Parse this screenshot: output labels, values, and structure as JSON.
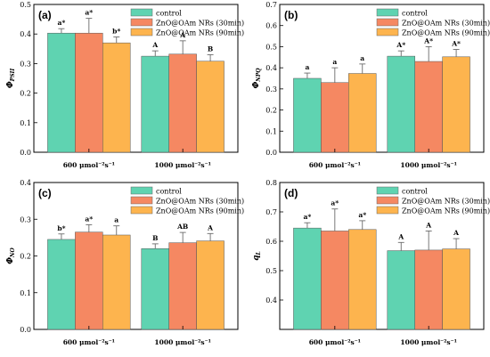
{
  "figure": {
    "series_names": [
      "control",
      "ZnO@OAm NRs (30min)",
      "ZnO@OAm NRs (90min)"
    ],
    "colors": [
      "#5fd3b1",
      "#f58862",
      "#fdb44e"
    ]
  },
  "chart_data": [
    {
      "type": "bar",
      "panel_label": "(a)",
      "ylabel": "Φ",
      "ylabel_sub": "PSII",
      "categories": [
        "600 μmol⁻²s⁻¹",
        "1000 μmol⁻²s⁻¹"
      ],
      "ylim": [
        0.0,
        0.5
      ],
      "yticks": [
        0.0,
        0.1,
        0.2,
        0.3,
        0.4,
        0.5
      ],
      "ytick_labels": [
        "0.0",
        "0.1",
        "0.2",
        "0.3",
        "0.4",
        "0.5"
      ],
      "legend_position": "top-right",
      "series": [
        {
          "name": "control",
          "values": [
            0.403,
            0.325
          ],
          "errors": [
            0.015,
            0.018
          ],
          "sig": [
            "a*",
            "A"
          ]
        },
        {
          "name": "ZnO@OAm NRs (30min)",
          "values": [
            0.403,
            0.332
          ],
          "errors": [
            0.05,
            0.045
          ],
          "sig": [
            "a*",
            "A"
          ]
        },
        {
          "name": "ZnO@OAm NRs (90min)",
          "values": [
            0.37,
            0.308
          ],
          "errors": [
            0.02,
            0.022
          ],
          "sig": [
            "b*",
            "B"
          ]
        }
      ]
    },
    {
      "type": "bar",
      "panel_label": "(b)",
      "ylabel": "Φ",
      "ylabel_sub": "NPQ",
      "categories": [
        "600 μmol⁻²s⁻¹",
        "1000 μmol⁻²s⁻¹"
      ],
      "ylim": [
        0.0,
        0.7
      ],
      "yticks": [
        0.0,
        0.1,
        0.2,
        0.3,
        0.4,
        0.5,
        0.6,
        0.7
      ],
      "ytick_labels": [
        "0.0",
        "0.1",
        "0.2",
        "0.3",
        "0.4",
        "0.5",
        "0.6",
        "0.7"
      ],
      "legend_position": "top-right",
      "series": [
        {
          "name": "control",
          "values": [
            0.35,
            0.455
          ],
          "errors": [
            0.025,
            0.025
          ],
          "sig": [
            "a",
            "A*"
          ]
        },
        {
          "name": "ZnO@OAm NRs (30min)",
          "values": [
            0.33,
            0.43
          ],
          "errors": [
            0.07,
            0.07
          ],
          "sig": [
            "a",
            "A*"
          ]
        },
        {
          "name": "ZnO@OAm NRs (90min)",
          "values": [
            0.373,
            0.452
          ],
          "errors": [
            0.045,
            0.035
          ],
          "sig": [
            "a",
            "A*"
          ]
        }
      ]
    },
    {
      "type": "bar",
      "panel_label": "(c)",
      "ylabel": "Φ",
      "ylabel_sub": "NO",
      "categories": [
        "600 μmol⁻²s⁻¹",
        "1000 μmol⁻²s⁻¹"
      ],
      "ylim": [
        0.0,
        0.4
      ],
      "yticks": [
        0.0,
        0.1,
        0.2,
        0.3,
        0.4
      ],
      "ytick_labels": [
        "0.0",
        "0.1",
        "0.2",
        "0.3",
        "0.4"
      ],
      "legend_position": "top-right",
      "series": [
        {
          "name": "control",
          "values": [
            0.245,
            0.22
          ],
          "errors": [
            0.015,
            0.013
          ],
          "sig": [
            "b*",
            "B"
          ]
        },
        {
          "name": "ZnO@OAm NRs (30min)",
          "values": [
            0.265,
            0.236
          ],
          "errors": [
            0.02,
            0.028
          ],
          "sig": [
            "a*",
            "AB"
          ]
        },
        {
          "name": "ZnO@OAm NRs (90min)",
          "values": [
            0.257,
            0.241
          ],
          "errors": [
            0.025,
            0.02
          ],
          "sig": [
            "a",
            "A"
          ]
        }
      ]
    },
    {
      "type": "bar",
      "panel_label": "(d)",
      "ylabel": "q",
      "ylabel_sub": "L",
      "categories": [
        "600 μmol⁻²s⁻¹",
        "1000 μmol⁻²s⁻¹"
      ],
      "ylim": [
        0.3,
        0.8
      ],
      "yticks": [
        0.3,
        0.4,
        0.5,
        0.6,
        0.7,
        0.8
      ],
      "ytick_labels": [
        "",
        "0.4",
        "0.5",
        "0.6",
        "0.7",
        "0.8"
      ],
      "legend_position": "top-right",
      "series": [
        {
          "name": "control",
          "values": [
            0.645,
            0.568
          ],
          "errors": [
            0.018,
            0.028
          ],
          "sig": [
            "a*",
            "A"
          ]
        },
        {
          "name": "ZnO@OAm NRs (30min)",
          "values": [
            0.635,
            0.57
          ],
          "errors": [
            0.075,
            0.065
          ],
          "sig": [
            "a*",
            "A"
          ]
        },
        {
          "name": "ZnO@OAm NRs (90min)",
          "values": [
            0.64,
            0.574
          ],
          "errors": [
            0.03,
            0.035
          ],
          "sig": [
            "a*",
            "A"
          ]
        }
      ]
    }
  ]
}
